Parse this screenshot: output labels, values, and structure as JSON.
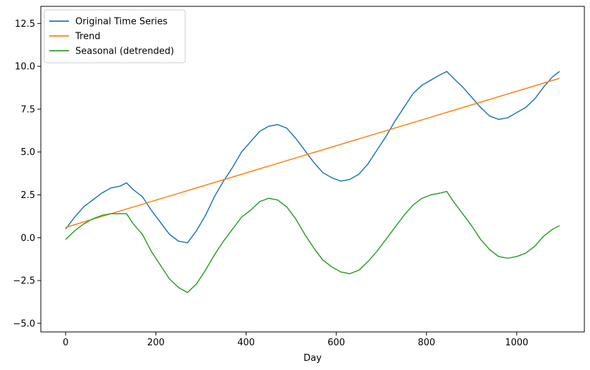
{
  "chart_data": {
    "type": "line",
    "title": "",
    "xlabel": "Day",
    "ylabel": "",
    "xlim": [
      -55,
      1150
    ],
    "ylim": [
      -5.5,
      13.5
    ],
    "x_ticks": [
      0,
      200,
      400,
      600,
      800,
      1000
    ],
    "y_ticks": [
      -5.0,
      -2.5,
      0.0,
      2.5,
      5.0,
      7.5,
      10.0,
      12.5
    ],
    "y_tick_labels": [
      "−5.0",
      "−2.5",
      "0.0",
      "2.5",
      "5.0",
      "7.5",
      "10.0",
      "12.5"
    ],
    "grid": false,
    "legend": "top-left",
    "series": [
      {
        "name": "Original Time Series",
        "color": "#1f77b4",
        "x": [
          0,
          20,
          40,
          60,
          80,
          100,
          120,
          135,
          150,
          170,
          190,
          210,
          230,
          250,
          270,
          290,
          310,
          330,
          350,
          370,
          390,
          410,
          430,
          450,
          470,
          490,
          510,
          530,
          550,
          570,
          590,
          610,
          630,
          650,
          670,
          690,
          710,
          730,
          750,
          770,
          790,
          810,
          830,
          845,
          860,
          880,
          900,
          920,
          940,
          960,
          980,
          1000,
          1020,
          1040,
          1060,
          1080,
          1095
        ],
        "y": [
          0.5,
          1.2,
          1.8,
          2.2,
          2.6,
          2.9,
          3.0,
          3.2,
          2.8,
          2.4,
          1.6,
          0.9,
          0.2,
          -0.2,
          -0.3,
          0.4,
          1.3,
          2.4,
          3.3,
          4.1,
          5.0,
          5.6,
          6.2,
          6.5,
          6.6,
          6.4,
          5.8,
          5.1,
          4.4,
          3.8,
          3.5,
          3.3,
          3.4,
          3.7,
          4.3,
          5.1,
          5.9,
          6.8,
          7.6,
          8.4,
          8.9,
          9.2,
          9.5,
          9.7,
          9.3,
          8.8,
          8.2,
          7.6,
          7.1,
          6.9,
          7.0,
          7.3,
          7.6,
          8.1,
          8.8,
          9.4,
          9.7
        ]
      },
      {
        "name": "Trend",
        "color": "#ff7f0e",
        "x": [
          0,
          1095
        ],
        "y": [
          0.6,
          9.3
        ]
      },
      {
        "name": "Seasonal (detrended)",
        "color": "#2ca02c",
        "x": [
          0,
          20,
          40,
          60,
          80,
          100,
          120,
          135,
          150,
          170,
          190,
          210,
          230,
          250,
          270,
          290,
          310,
          330,
          350,
          370,
          390,
          410,
          430,
          450,
          470,
          490,
          510,
          530,
          550,
          570,
          590,
          610,
          630,
          650,
          670,
          690,
          710,
          730,
          750,
          770,
          790,
          810,
          830,
          845,
          860,
          880,
          900,
          920,
          940,
          960,
          980,
          1000,
          1020,
          1040,
          1060,
          1080,
          1095
        ],
        "y": [
          -0.1,
          0.4,
          0.8,
          1.1,
          1.3,
          1.4,
          1.4,
          1.4,
          0.8,
          0.2,
          -0.8,
          -1.6,
          -2.4,
          -2.9,
          -3.2,
          -2.7,
          -1.9,
          -1.0,
          -0.2,
          0.5,
          1.2,
          1.6,
          2.1,
          2.3,
          2.2,
          1.8,
          1.1,
          0.2,
          -0.6,
          -1.3,
          -1.7,
          -2.0,
          -2.1,
          -1.9,
          -1.4,
          -0.8,
          -0.1,
          0.6,
          1.3,
          1.9,
          2.3,
          2.5,
          2.6,
          2.7,
          2.1,
          1.4,
          0.7,
          -0.1,
          -0.7,
          -1.1,
          -1.2,
          -1.1,
          -0.9,
          -0.5,
          0.1,
          0.5,
          0.7
        ]
      }
    ]
  }
}
